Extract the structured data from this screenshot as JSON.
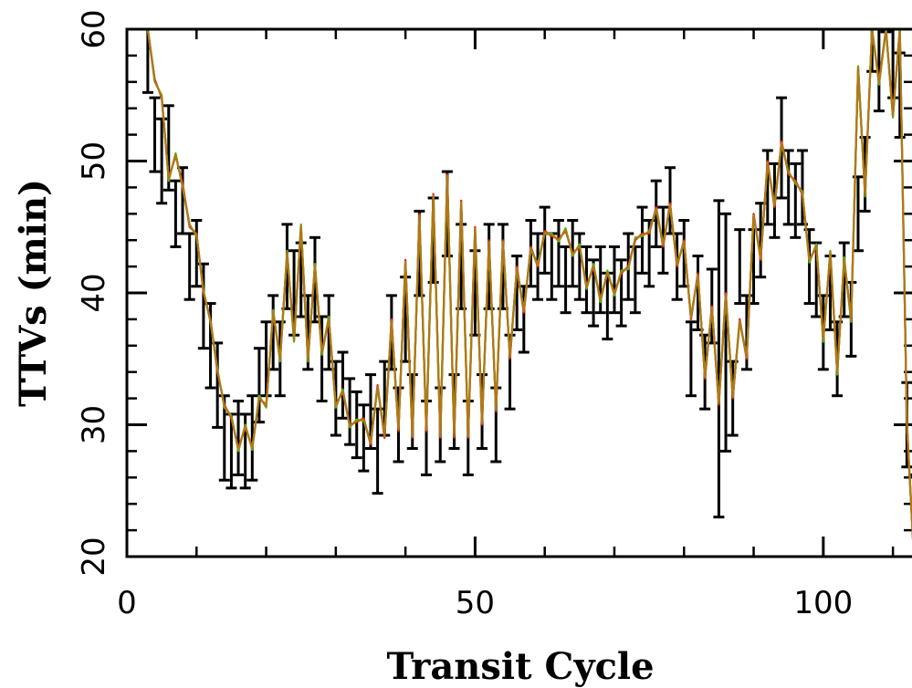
{
  "chart_data": {
    "type": "line",
    "title": "",
    "xlabel": "Transit Cycle",
    "ylabel": "TTVs (min)",
    "xlim": [
      0,
      113
    ],
    "ylim": [
      20,
      60
    ],
    "x_ticks": [
      0,
      50,
      100
    ],
    "x_tick_labels": [
      "0",
      "50",
      "100"
    ],
    "y_ticks": [
      20,
      30,
      40,
      50,
      60
    ],
    "y_tick_labels": [
      "20",
      "30",
      "40",
      "50",
      "60"
    ],
    "x_minor_step": 10,
    "y_minor_step": 2,
    "grid": false,
    "legend": "none",
    "observations": {
      "x": [
        3,
        4,
        5,
        6,
        7,
        8,
        9,
        10,
        11,
        12,
        13,
        14,
        15,
        16,
        17,
        18,
        19,
        20,
        21,
        22,
        23,
        24,
        25,
        26,
        27,
        28,
        29,
        30,
        31,
        32,
        33,
        34,
        35,
        36,
        37,
        38,
        39,
        40,
        41,
        42,
        43,
        44,
        45,
        46,
        47,
        48,
        49,
        50,
        51,
        52,
        53,
        54,
        55,
        56,
        57,
        58,
        59,
        60,
        61,
        62,
        63,
        64,
        65,
        66,
        67,
        68,
        69,
        70,
        71,
        72,
        73,
        74,
        75,
        76,
        77,
        78,
        79,
        80,
        81,
        82,
        83,
        84,
        85,
        86,
        87,
        88,
        89,
        90,
        91,
        92,
        93,
        94,
        95,
        96,
        97,
        98,
        99,
        100,
        101,
        102,
        103,
        104,
        105,
        106,
        107,
        108,
        109,
        110,
        111,
        112,
        113
      ],
      "y": [
        58,
        52,
        50,
        51,
        46,
        47,
        42,
        43,
        39,
        36,
        33,
        29,
        28,
        29,
        28,
        29,
        33,
        35,
        37,
        35,
        42,
        40,
        41,
        37,
        41,
        35,
        37,
        32,
        33,
        31,
        30,
        29,
        31,
        28,
        32,
        37,
        30,
        38,
        31,
        43,
        29,
        44,
        30,
        46,
        31,
        42,
        29,
        40,
        31,
        42,
        30,
        42,
        34,
        40,
        38,
        43,
        42,
        44,
        42,
        43,
        41,
        43,
        42,
        41,
        40,
        41,
        39,
        41,
        40,
        42,
        41,
        44,
        43,
        46,
        44,
        47,
        42,
        43,
        35,
        40,
        34,
        39,
        35,
        37,
        32,
        42,
        37,
        42,
        44,
        48,
        47,
        51,
        48,
        47,
        48,
        42,
        41,
        37,
        40,
        35,
        41,
        38,
        46,
        49,
        60,
        57,
        63,
        58,
        55,
        30,
        23
      ],
      "err": [
        2.8,
        2.8,
        3.2,
        3.2,
        2.5,
        2.5,
        2.5,
        2.5,
        3.2,
        3.2,
        3.2,
        3.2,
        2.8,
        2.8,
        2.8,
        3.2,
        2.8,
        2.8,
        2.8,
        2.8,
        3.2,
        3.2,
        2.8,
        2.8,
        3.2,
        3.2,
        2.8,
        2.8,
        2.5,
        2.5,
        2.5,
        2.5,
        2.8,
        3.2,
        2.8,
        2.8,
        2.8,
        3.2,
        2.8,
        3.2,
        2.8,
        3.2,
        2.8,
        3.2,
        2.8,
        3.2,
        2.8,
        3.2,
        2.8,
        3.2,
        2.8,
        3.2,
        2.8,
        2.8,
        2.5,
        2.5,
        2.5,
        2.5,
        2.5,
        2.5,
        2.5,
        2.5,
        2.5,
        2.5,
        2.5,
        2.5,
        2.5,
        2.5,
        2.5,
        2.5,
        2.5,
        2.5,
        2.5,
        2.5,
        2.5,
        2.5,
        2.5,
        2.5,
        2.8,
        2.8,
        2.8,
        2.8,
        12,
        9,
        2.8,
        2.8,
        2.8,
        2.8,
        2.8,
        2.8,
        2.8,
        3.8,
        2.8,
        2.8,
        2.8,
        2.8,
        2.8,
        2.8,
        2.8,
        2.8,
        2.8,
        2.8,
        2.8,
        2.8,
        3.2,
        3.2,
        3.2,
        3.2,
        3.2,
        3.2,
        3.2
      ]
    },
    "series": [
      {
        "color": "#ff0000",
        "x": [
          3,
          4,
          5,
          6,
          7,
          8,
          9,
          10,
          11,
          12,
          13,
          14,
          15,
          16,
          17,
          18,
          19,
          20,
          21,
          22,
          23,
          24,
          25,
          26,
          27,
          28,
          29,
          30,
          31,
          32,
          33,
          34,
          35,
          36,
          37,
          38,
          39,
          40,
          41,
          42,
          43,
          44,
          45,
          46,
          47,
          48,
          49,
          50,
          51,
          52,
          53,
          54,
          55,
          56,
          57,
          58,
          59,
          60,
          61,
          62,
          63,
          64,
          65,
          66,
          67,
          68,
          69,
          70,
          71,
          72,
          73,
          74,
          75,
          76,
          77,
          78,
          79,
          80,
          81,
          82,
          83,
          84,
          85,
          86,
          87,
          88,
          89,
          90,
          91,
          92,
          93,
          94,
          95,
          96,
          97,
          98,
          99,
          100,
          101,
          102,
          103,
          104,
          105,
          106,
          107,
          108,
          109,
          110,
          111,
          112,
          113
        ],
        "y": [
          60,
          56.2,
          54.8,
          48.7,
          50.4,
          48.3,
          45.0,
          44.5,
          40.0,
          38.0,
          34.0,
          31.5,
          30.5,
          28.2,
          29.8,
          28.3,
          32.0,
          31.5,
          38.5,
          35.0,
          43.0,
          36.5,
          45.0,
          35.0,
          42.0,
          35.5,
          38.0,
          31.5,
          32.5,
          30.0,
          30.2,
          30.5,
          28.5,
          33.0,
          29.0,
          38.0,
          29.5,
          42.5,
          29.0,
          46.0,
          29.5,
          47.5,
          29.0,
          49.0,
          29.0,
          47.0,
          29.0,
          45.0,
          30.0,
          44.0,
          31.0,
          44.0,
          35.0,
          42.0,
          38.5,
          43.5,
          42.0,
          44.7,
          44.3,
          44.1,
          44.7,
          43.0,
          43.5,
          40.5,
          42.0,
          39.5,
          41.5,
          40.0,
          41.5,
          42.0,
          44.0,
          44.5,
          44.5,
          46.5,
          43.5,
          46.8,
          42.0,
          44.0,
          38.0,
          41.5,
          33.5,
          39.0,
          31.5,
          40.0,
          32.0,
          38.0,
          35.0,
          46.0,
          42.5,
          50.0,
          46.5,
          51.5,
          49.0,
          48.5,
          47.5,
          42.5,
          43.5,
          36.5,
          43.0,
          34.0,
          42.5,
          38.0,
          57.0,
          47.5,
          60,
          56.0,
          60,
          53.5,
          60,
          30.0,
          20.0
        ]
      },
      {
        "color": "#33cc00",
        "x": [
          3,
          4,
          5,
          6,
          7,
          8,
          9,
          10,
          11,
          12,
          13,
          14,
          15,
          16,
          17,
          18,
          19,
          20,
          21,
          22,
          23,
          24,
          25,
          26,
          27,
          28,
          29,
          30,
          31,
          32,
          33,
          34,
          35,
          36,
          37,
          38,
          39,
          40,
          41,
          42,
          43,
          44,
          45,
          46,
          47,
          48,
          49,
          50,
          51,
          52,
          53,
          54,
          55,
          56,
          57,
          58,
          59,
          60,
          61,
          62,
          63,
          64,
          65,
          66,
          67,
          68,
          69,
          70,
          71,
          72,
          73,
          74,
          75,
          76,
          77,
          78,
          79,
          80,
          81,
          82,
          83,
          84,
          85,
          86,
          87,
          88,
          89,
          90,
          91,
          92,
          93,
          94,
          95,
          96,
          97,
          98,
          99,
          100,
          101,
          102,
          103,
          104,
          105,
          106,
          107,
          108,
          109,
          110,
          111,
          112,
          113
        ],
        "y": [
          60,
          56.0,
          55.0,
          48.5,
          50.6,
          48.0,
          45.2,
          44.3,
          40.2,
          37.8,
          34.2,
          31.3,
          30.7,
          28.0,
          30.0,
          28.1,
          32.2,
          31.3,
          38.7,
          34.8,
          43.2,
          36.3,
          45.2,
          34.8,
          42.2,
          35.3,
          38.2,
          31.3,
          32.7,
          29.8,
          30.4,
          30.3,
          28.7,
          32.8,
          29.2,
          37.8,
          29.7,
          42.3,
          29.2,
          45.8,
          29.7,
          47.3,
          29.2,
          48.8,
          29.2,
          46.8,
          29.2,
          44.8,
          30.2,
          43.8,
          31.2,
          43.8,
          35.2,
          41.8,
          38.7,
          43.3,
          42.2,
          44.5,
          44.5,
          43.9,
          44.9,
          42.8,
          43.7,
          40.3,
          42.2,
          39.3,
          41.7,
          39.8,
          41.7,
          41.8,
          44.2,
          44.3,
          44.7,
          46.3,
          43.7,
          46.6,
          42.2,
          43.8,
          38.2,
          41.3,
          33.7,
          38.8,
          31.7,
          39.8,
          32.2,
          37.8,
          35.2,
          45.8,
          42.7,
          49.8,
          46.7,
          51.3,
          49.2,
          48.3,
          47.7,
          42.3,
          43.7,
          36.3,
          43.2,
          33.8,
          42.7,
          37.8,
          57.2,
          47.3,
          60,
          55.8,
          60,
          53.3,
          60,
          30.2,
          20.2
        ]
      },
      {
        "color": "#b07818",
        "x": [
          3,
          4,
          5,
          6,
          7,
          8,
          9,
          10,
          11,
          12,
          13,
          14,
          15,
          16,
          17,
          18,
          19,
          20,
          21,
          22,
          23,
          24,
          25,
          26,
          27,
          28,
          29,
          30,
          31,
          32,
          33,
          34,
          35,
          36,
          37,
          38,
          39,
          40,
          41,
          42,
          43,
          44,
          45,
          46,
          47,
          48,
          49,
          50,
          51,
          52,
          53,
          54,
          55,
          56,
          57,
          58,
          59,
          60,
          61,
          62,
          63,
          64,
          65,
          66,
          67,
          68,
          69,
          70,
          71,
          72,
          73,
          74,
          75,
          76,
          77,
          78,
          79,
          80,
          81,
          82,
          83,
          84,
          85,
          86,
          87,
          88,
          89,
          90,
          91,
          92,
          93,
          94,
          95,
          96,
          97,
          98,
          99,
          100,
          101,
          102,
          103,
          104,
          105,
          106,
          107,
          108,
          109,
          110,
          111,
          112,
          113
        ],
        "y": [
          60,
          56.1,
          54.9,
          48.6,
          50.5,
          48.1,
          45.1,
          44.4,
          40.1,
          37.9,
          34.1,
          31.4,
          30.6,
          28.1,
          29.9,
          28.2,
          32.1,
          31.4,
          38.6,
          34.9,
          43.1,
          36.4,
          45.1,
          34.9,
          42.1,
          35.4,
          38.1,
          31.4,
          32.6,
          29.9,
          30.3,
          30.4,
          28.6,
          32.9,
          29.1,
          37.9,
          29.6,
          42.4,
          29.1,
          45.9,
          29.6,
          47.4,
          29.1,
          48.9,
          29.1,
          46.9,
          29.1,
          44.9,
          30.1,
          43.9,
          31.1,
          43.9,
          35.1,
          41.9,
          38.6,
          43.4,
          42.1,
          44.6,
          44.4,
          44.0,
          44.8,
          42.9,
          43.6,
          40.4,
          42.1,
          39.4,
          41.6,
          39.9,
          41.6,
          41.9,
          44.1,
          44.4,
          44.6,
          46.4,
          43.6,
          46.7,
          42.1,
          43.9,
          38.1,
          41.4,
          33.6,
          38.9,
          31.6,
          39.9,
          32.1,
          37.9,
          35.1,
          45.9,
          42.6,
          49.9,
          46.6,
          51.4,
          49.1,
          48.4,
          47.6,
          42.4,
          43.6,
          36.4,
          43.1,
          33.9,
          42.6,
          37.9,
          57.1,
          47.4,
          60,
          55.9,
          60,
          53.4,
          60,
          30.1,
          20.1
        ]
      }
    ]
  }
}
